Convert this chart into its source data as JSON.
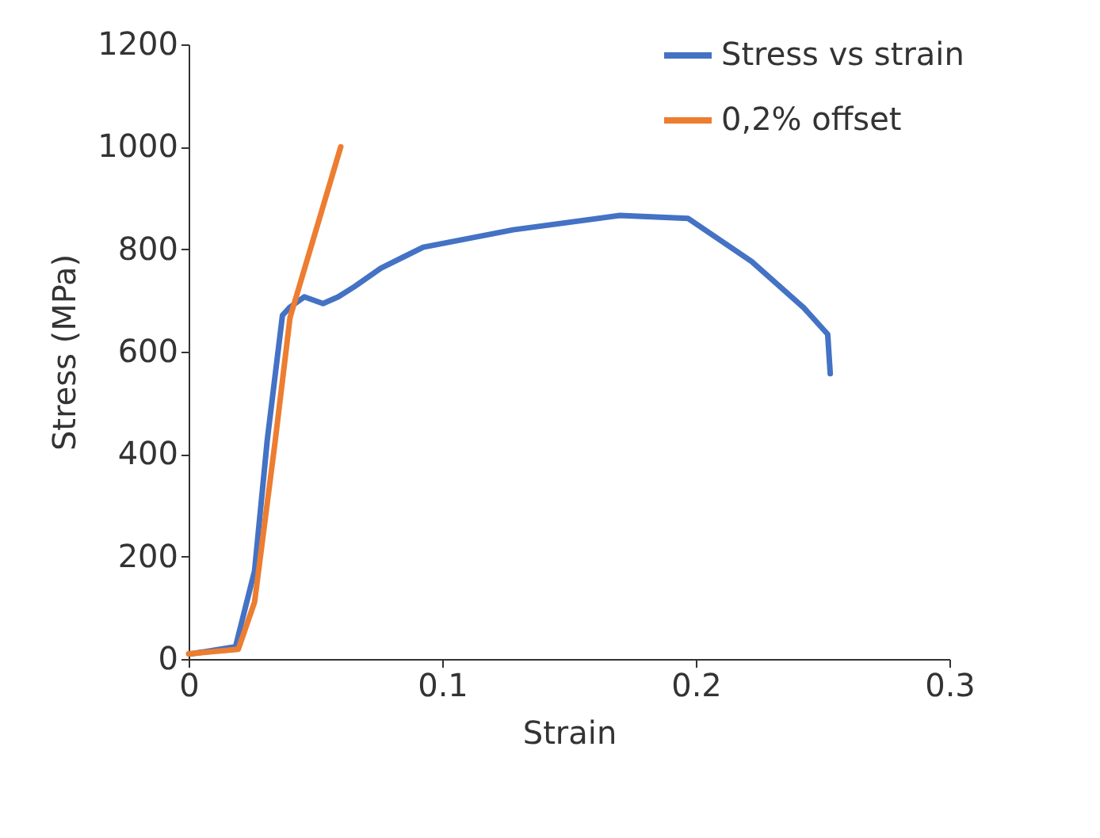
{
  "chart_data": {
    "type": "line",
    "xlabel": "Strain",
    "ylabel": "Stress (MPa)",
    "xlim": [
      0,
      0.3
    ],
    "xticks": [
      0,
      0.1,
      0.2,
      0.3
    ],
    "ylim": [
      0,
      1200
    ],
    "yticks": [
      0,
      200,
      400,
      600,
      800,
      1000,
      1200
    ],
    "grid": false,
    "legend": "top right",
    "line_style": "solid",
    "marker": "none",
    "series": [
      {
        "name": "Stress vs strain",
        "color": "#4472c4",
        "x": [
          0.001,
          0.0185,
          0.026,
          0.031,
          0.037,
          0.04,
          0.0456,
          0.053,
          0.059,
          0.0654,
          0.0758,
          0.0925,
          0.128,
          0.17,
          0.197,
          0.222,
          0.2425,
          0.252,
          0.253
        ],
        "values": [
          10,
          24,
          172,
          427,
          671,
          687,
          707,
          694,
          707,
          727,
          763,
          804,
          838,
          866,
          860,
          776,
          686,
          634,
          557
        ]
      },
      {
        "name": "0,2% offset",
        "color": "#ed7d31",
        "x": [
          0,
          0.0196,
          0.026,
          0.034,
          0.04,
          0.06
        ],
        "values": [
          10,
          19,
          111,
          420,
          667,
          1000
        ]
      }
    ]
  }
}
